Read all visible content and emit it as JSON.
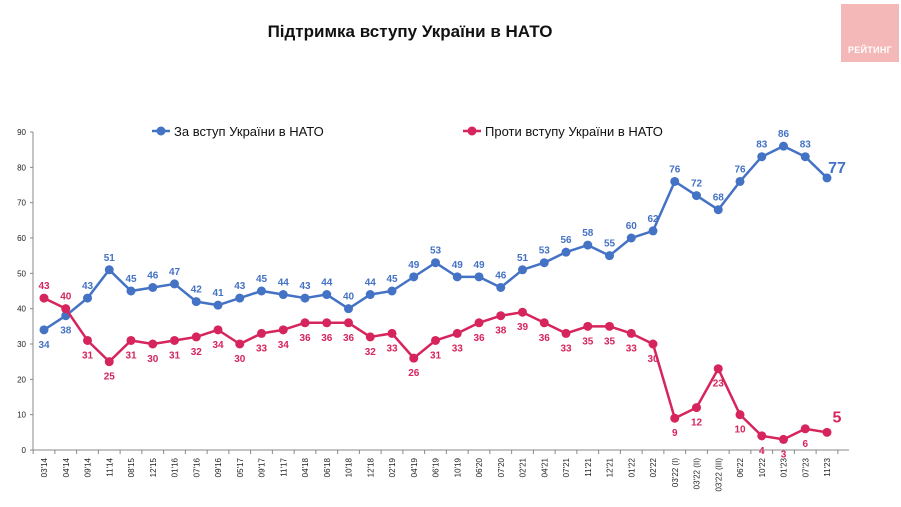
{
  "title": "Підтримка вступу України в НАТО",
  "logo_text": "РЕЙТИНГ",
  "colors": {
    "for": "#4472c4",
    "against": "#d6245c",
    "axis": "#888888"
  },
  "chart_data": {
    "type": "line",
    "title": "Підтримка вступу України в НАТО",
    "xlabel": "",
    "ylabel": "",
    "ylim": [
      0,
      90
    ],
    "yticks": [
      0,
      10,
      20,
      30,
      40,
      50,
      60,
      70,
      80,
      90
    ],
    "grid": false,
    "legend_position": "top",
    "categories": [
      "03'14",
      "04'14",
      "09'14",
      "11'14",
      "08'15",
      "12'15",
      "01'16",
      "07'16",
      "09'16",
      "05'17",
      "09'17",
      "11'17",
      "04'18",
      "06'18",
      "10'18",
      "12'18",
      "02'19",
      "04'19",
      "06'19",
      "10'19",
      "06'20",
      "07'20",
      "02'21",
      "04'21",
      "07'21",
      "11'21",
      "12'21",
      "01'22",
      "02'22",
      "03'22 (I)",
      "03'22 (II)",
      "03'22 (III)",
      "06'22",
      "10'22",
      "01'23",
      "07'23",
      "11'23"
    ],
    "series": [
      {
        "name": "За вступ України в НАТО",
        "color": "#4472c4",
        "values": [
          34,
          38,
          43,
          51,
          45,
          46,
          47,
          42,
          41,
          43,
          45,
          44,
          43,
          44,
          40,
          44,
          45,
          49,
          53,
          49,
          49,
          46,
          51,
          53,
          56,
          58,
          55,
          60,
          62,
          76,
          72,
          68,
          76,
          83,
          86,
          83,
          77
        ]
      },
      {
        "name": "Проти вступу України в НАТО",
        "color": "#d6245c",
        "values": [
          43,
          40,
          31,
          25,
          31,
          30,
          31,
          32,
          34,
          30,
          33,
          34,
          36,
          36,
          36,
          32,
          33,
          26,
          31,
          33,
          36,
          38,
          39,
          36,
          33,
          35,
          35,
          33,
          30,
          9,
          12,
          23,
          10,
          4,
          3,
          6,
          5
        ]
      }
    ]
  }
}
